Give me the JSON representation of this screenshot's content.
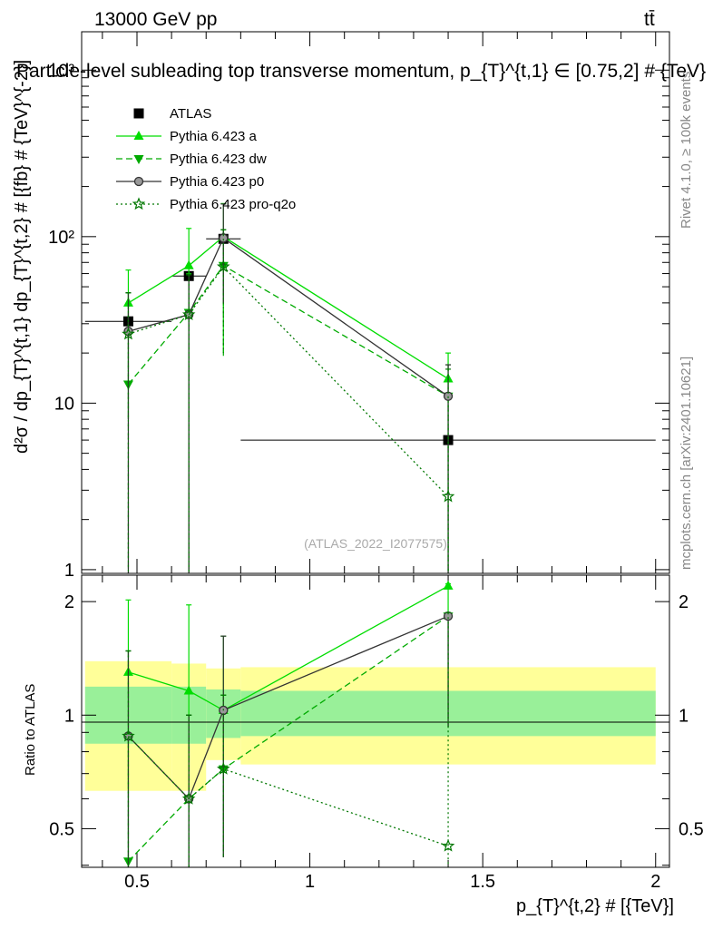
{
  "header": {
    "left": "13000 GeV pp",
    "right": "tt̄"
  },
  "side_labels": {
    "rivet": "Rivet 4.1.0, ≥ 100k events",
    "mcplots": "mcplots.cern.ch [arXiv:2401.10621]"
  },
  "watermark": "(ATLAS_2022_I2077575)",
  "colors": {
    "atlas": "#000000",
    "pythia_a": "#00dd00",
    "pythia_dw": "#00aa00",
    "pythia_p0": "#333333",
    "pythia_proq2o": "#007700",
    "band_inner": "#99f099",
    "band_outer": "#ffff99"
  },
  "chart_data": [
    {
      "type": "scatter",
      "panel": "main",
      "title": "Particle-level subleading top transverse momentum, p_{T}^{t,1} ∈ [0.75,2] # {TeV}",
      "ylabel": "d²σ / dp_{T}^{t,1} dp_{T}^{t,2} # [{fb} # {TeV}^{-2}]",
      "xlabel": "",
      "yscale": "log",
      "ylim": [
        0.95,
        1700
      ],
      "xlim": [
        0.34,
        2.04
      ],
      "yticks": [
        {
          "value": 1,
          "label": "1"
        },
        {
          "value": 10,
          "label": "10"
        },
        {
          "value": 100,
          "label": "10²"
        },
        {
          "value": 1000,
          "label": "10³"
        }
      ],
      "legend_position": "top-left",
      "series": [
        {
          "name": "ATLAS",
          "key": "atlas",
          "marker": "square",
          "line": "none",
          "x": [
            0.475,
            0.65,
            0.75,
            1.4
          ],
          "xerr": [
            0.125,
            0.05,
            0.05,
            0.6
          ],
          "y": [
            31,
            58,
            97,
            6.0
          ]
        },
        {
          "name": "Pythia 6.423 a",
          "key": "pythia_a",
          "marker": "triangle-up",
          "line": "solid",
          "x": [
            0.475,
            0.65,
            0.75,
            1.4
          ],
          "y": [
            40,
            67,
            100,
            14
          ],
          "ylo": [
            8,
            0.3,
            20,
            0.3
          ],
          "yhi": [
            63,
            112,
            158,
            20
          ]
        },
        {
          "name": "Pythia 6.423 dw",
          "key": "pythia_dw",
          "marker": "triangle-down",
          "line": "dashed",
          "x": [
            0.475,
            0.65,
            0.75,
            1.4
          ],
          "y": [
            13,
            35,
            67,
            11
          ],
          "ylo": [
            0.3,
            0.3,
            19,
            0.3
          ],
          "yhi": [
            46,
            60,
            110,
            17
          ]
        },
        {
          "name": "Pythia 6.423 p0",
          "key": "pythia_p0",
          "marker": "circle-open",
          "line": "solid",
          "x": [
            0.475,
            0.65,
            0.75,
            1.4
          ],
          "y": [
            27,
            34,
            98,
            11
          ],
          "ylo": [
            0.3,
            0.3,
            40,
            0.3
          ],
          "yhi": [
            46,
            59,
            157,
            17
          ]
        },
        {
          "name": "Pythia 6.423 pro-q2o",
          "key": "pythia_proq2o",
          "marker": "star-open",
          "line": "dotted",
          "x": [
            0.475,
            0.65,
            0.75,
            1.4
          ],
          "y": [
            26,
            34,
            66,
            2.75
          ],
          "ylo": [
            0.3,
            0.3,
            20,
            0.3
          ],
          "yhi": [
            46,
            59,
            110,
            16
          ]
        }
      ]
    },
    {
      "type": "scatter",
      "panel": "ratio",
      "ylabel": "Ratio to ATLAS",
      "xlabel": "p_{T}^{t,2} # [{TeV}]",
      "yscale": "log",
      "ylim": [
        0.395,
        2.35
      ],
      "xlim": [
        0.34,
        2.04
      ],
      "yticks": [
        {
          "value": 0.5,
          "label": "0.5"
        },
        {
          "value": 1,
          "label": "1"
        },
        {
          "value": 2,
          "label": "2"
        }
      ],
      "xticks": [
        {
          "value": 0.5,
          "label": "0.5"
        },
        {
          "value": 1,
          "label": "1"
        },
        {
          "value": 1.5,
          "label": "1.5"
        },
        {
          "value": 2,
          "label": "2"
        }
      ],
      "bands": [
        {
          "x0": 0.35,
          "x1": 0.6,
          "inner": [
            0.84,
            1.19
          ],
          "outer": [
            0.63,
            1.39
          ]
        },
        {
          "x0": 0.6,
          "x1": 0.7,
          "inner": [
            0.84,
            1.19
          ],
          "outer": [
            0.63,
            1.37
          ]
        },
        {
          "x0": 0.7,
          "x1": 0.8,
          "inner": [
            0.87,
            1.17
          ],
          "outer": [
            0.76,
            1.33
          ]
        },
        {
          "x0": 0.8,
          "x1": 2.0,
          "inner": [
            0.88,
            1.16
          ],
          "outer": [
            0.74,
            1.34
          ]
        }
      ],
      "series": [
        {
          "name": "Pythia 6.423 a",
          "key": "pythia_a",
          "marker": "triangle-up",
          "line": "solid",
          "x": [
            0.475,
            0.65,
            0.75,
            1.4
          ],
          "y": [
            1.3,
            1.16,
            1.03,
            2.2
          ],
          "ylo": [
            0.27,
            0.01,
            0.42,
            0.93
          ],
          "yhi": [
            2.02,
            1.96,
            1.62,
            2.23
          ]
        },
        {
          "name": "Pythia 6.423 dw",
          "key": "pythia_dw",
          "marker": "triangle-down",
          "line": "dashed",
          "x": [
            0.475,
            0.65,
            0.75,
            1.4
          ],
          "y": [
            0.41,
            0.6,
            0.72,
            1.83
          ],
          "ylo": [
            0.01,
            0.01,
            0.42,
            0.93
          ],
          "yhi": [
            1.48,
            1.0,
            1.13,
            1.87
          ]
        },
        {
          "name": "Pythia 6.423 p0",
          "key": "pythia_p0",
          "marker": "circle-open",
          "line": "solid",
          "x": [
            0.475,
            0.65,
            0.75,
            1.4
          ],
          "y": [
            0.88,
            0.6,
            1.03,
            1.83
          ],
          "ylo": [
            0.01,
            0.01,
            0.42,
            0.93
          ],
          "yhi": [
            1.48,
            1.0,
            1.62,
            1.87
          ]
        },
        {
          "name": "Pythia 6.423 pro-q2o",
          "key": "pythia_proq2o",
          "marker": "star-open",
          "line": "dotted",
          "x": [
            0.475,
            0.65,
            0.75,
            1.4
          ],
          "y": [
            0.88,
            0.6,
            0.72,
            0.45
          ],
          "ylo": [
            0.01,
            0.01,
            0.42,
            0.01
          ],
          "yhi": [
            1.48,
            1.0,
            1.13,
            1.87
          ]
        }
      ]
    }
  ]
}
